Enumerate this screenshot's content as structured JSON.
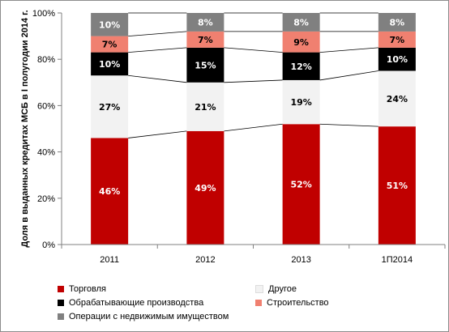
{
  "chart_data": {
    "type": "bar",
    "stacked": true,
    "percent_stacked": true,
    "categories": [
      "2011",
      "2012",
      "2013",
      "1П2014"
    ],
    "ylabel": "Доля в выданных  кредитах МСБ в I полугодии 2014 г.",
    "ylim": [
      0,
      100
    ],
    "y_ticks": [
      "0%",
      "20%",
      "40%",
      "60%",
      "80%",
      "100%"
    ],
    "grid": false,
    "legend_position": "bottom",
    "series": [
      {
        "name": "Торговля",
        "color": "#c00000",
        "label_color": "#ffffff",
        "values": [
          46,
          49,
          52,
          51
        ],
        "labels": [
          "46%",
          "49%",
          "52%",
          "51%"
        ]
      },
      {
        "name": "Другое",
        "color": "#f2f2f2",
        "label_color": "#000000",
        "values": [
          27,
          21,
          19,
          24
        ],
        "labels": [
          "27%",
          "21%",
          "19%",
          "24%"
        ]
      },
      {
        "name": "Обрабатывающие производства",
        "color": "#000000",
        "label_color": "#ffffff",
        "values": [
          10,
          15,
          12,
          10
        ],
        "labels": [
          "10%",
          "15%",
          "12%",
          "10%"
        ]
      },
      {
        "name": "Строительство",
        "color": "#f08070",
        "label_color": "#000000",
        "values": [
          7,
          7,
          9,
          7
        ],
        "labels": [
          "7%",
          "7%",
          "9%",
          "7%"
        ]
      },
      {
        "name": "Операции с недвижимым имуществом",
        "color": "#808080",
        "label_color": "#ffffff",
        "values": [
          10,
          8,
          8,
          8
        ],
        "labels": [
          "10%",
          "8%",
          "8%",
          "8%"
        ]
      }
    ]
  }
}
